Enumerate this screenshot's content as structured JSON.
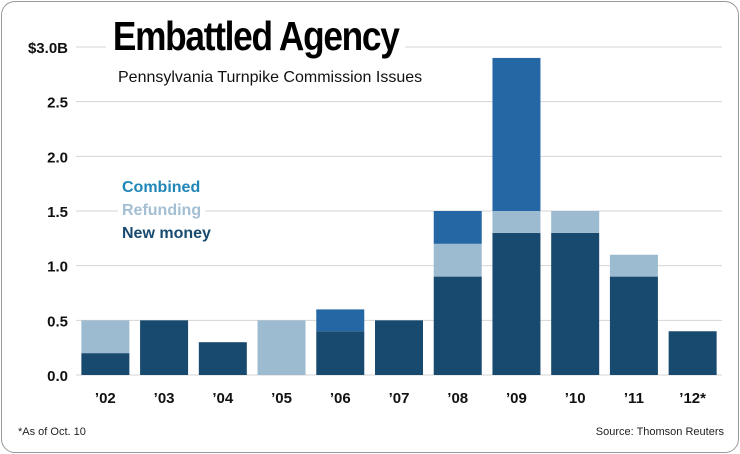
{
  "chart_data": {
    "type": "bar",
    "stacked": true,
    "title": "Embattled Agency",
    "subtitle": "Pennsylvania Turnpike Commission Issues",
    "ytick_labels": [
      "0.0",
      "0.5",
      "1.0",
      "1.5",
      "2.0",
      "2.5",
      "$3.0B"
    ],
    "ylim": [
      0,
      3.0
    ],
    "categories": [
      "’02",
      "’03",
      "’04",
      "’05",
      "’06",
      "’07",
      "’08",
      "’09",
      "’10",
      "’11",
      "’12*"
    ],
    "series": [
      {
        "name": "New money",
        "color": "#174a6e",
        "values": [
          0.2,
          0.5,
          0.3,
          0.0,
          0.4,
          0.5,
          0.9,
          1.3,
          1.3,
          0.9,
          0.4
        ]
      },
      {
        "name": "Refunding",
        "color": "#9dbbd0",
        "values": [
          0.3,
          0.0,
          0.0,
          0.5,
          0.0,
          0.0,
          0.3,
          0.2,
          0.2,
          0.2,
          0.0
        ]
      },
      {
        "name": "Combined",
        "color": "#2566a4",
        "values": [
          0.0,
          0.0,
          0.0,
          0.0,
          0.2,
          0.0,
          0.3,
          1.4,
          0.0,
          0.0,
          0.0
        ]
      }
    ],
    "legend": {
      "position": "upper-left",
      "entries": [
        {
          "label": "Combined",
          "color": "#1f86b8"
        },
        {
          "label": "Refunding",
          "color": "#a3bfd3"
        },
        {
          "label": "New money",
          "color": "#174a6e"
        }
      ]
    },
    "grid": true,
    "footnote": "*As of Oct. 10",
    "source": "Source: Thomson Reuters"
  }
}
